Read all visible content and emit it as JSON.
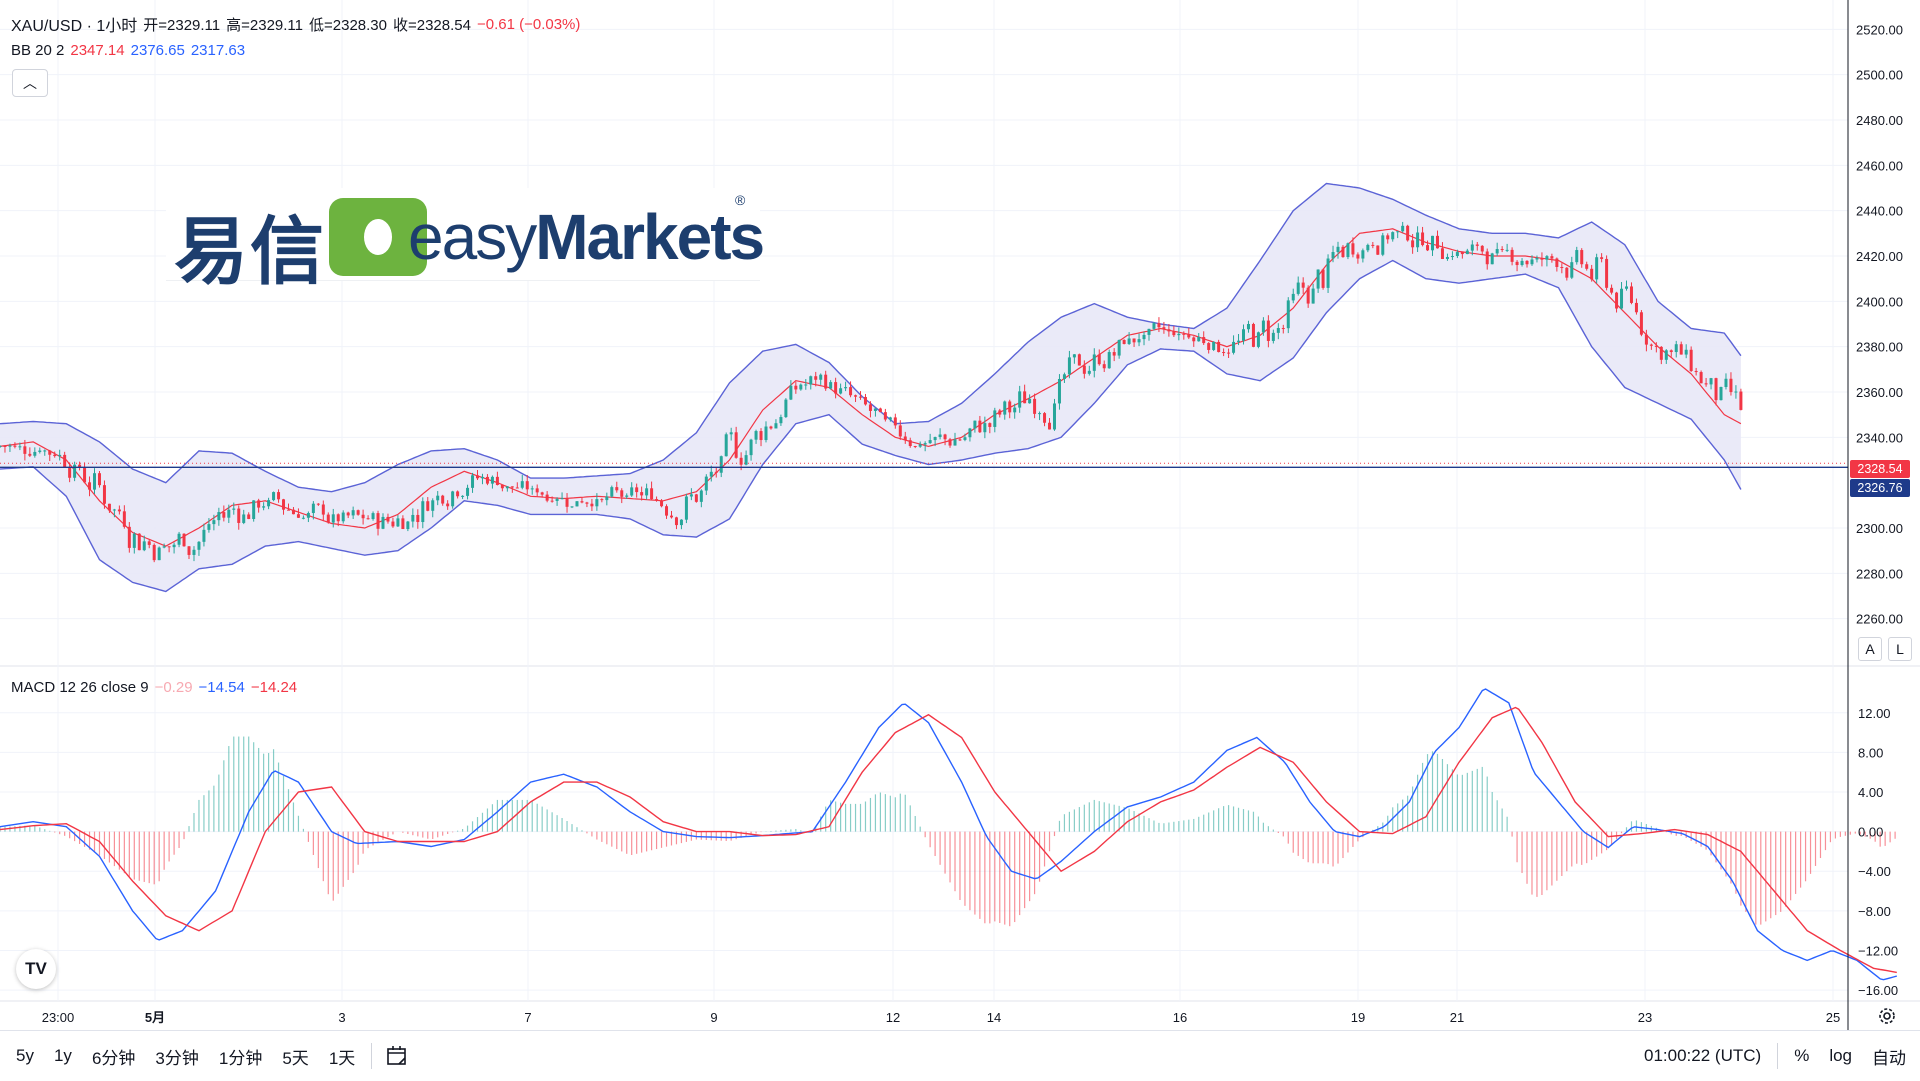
{
  "header": {
    "symbol": "XAU/USD · 1小时",
    "open": "开=2329.11",
    "high": "高=2329.11",
    "low": "低=2328.30",
    "close": "收=2328.54",
    "change": "−0.61 (−0.03%)"
  },
  "bb_legend": {
    "label": "BB 20 2",
    "basis": "2347.14",
    "upper": "2376.65",
    "lower": "2317.63"
  },
  "macd_legend": {
    "label": "MACD 12 26 close 9",
    "hist": "−0.29",
    "macd": "−14.54",
    "signal": "−14.24"
  },
  "logo": {
    "cn": "易信",
    "en_light": "easy",
    "en_bold": "Markets",
    "reg": "®"
  },
  "price_badges": {
    "last": "2328.54",
    "line": "2326.76"
  },
  "scale_buttons": {
    "auto": "A",
    "log": "L"
  },
  "tv_logo": "TV",
  "toolbar": {
    "ranges": [
      "5y",
      "1y",
      "6分钟",
      "3分钟",
      "1分钟",
      "5天",
      "1天"
    ],
    "calendar_icon": "calendar-icon",
    "time": "01:00:22 (UTC)",
    "percent": "%",
    "log": "log",
    "auto": "自动"
  },
  "colors": {
    "up": "#26a69a",
    "down": "#f23645",
    "bb_band": "#5b63d6",
    "bb_fill": "#e8e8f7",
    "bb_basis": "#f23645",
    "macd": "#2962ff",
    "signal": "#f23645",
    "hline": "#1e3a8a"
  },
  "chart_data": [
    {
      "type": "candlestick",
      "title": "XAU/USD · 1小时",
      "x_ticks": [
        "23:00",
        "5月",
        "3",
        "7",
        "9",
        "12",
        "14",
        "16",
        "19",
        "21",
        "23",
        "25"
      ],
      "y_ticks": [
        "2520.00",
        "2500.00",
        "2480.00",
        "2460.00",
        "2440.00",
        "2420.00",
        "2400.00",
        "2380.00",
        "2360.00",
        "2340.00",
        "2300.00",
        "2280.00",
        "2260.00"
      ],
      "ylim": [
        2255,
        2525
      ],
      "last_price": 2328.54,
      "horizontal_line": 2326.76,
      "bb_basis": [
        [
          0,
          2336
        ],
        [
          20,
          2338
        ],
        [
          40,
          2330
        ],
        [
          60,
          2312
        ],
        [
          80,
          2298
        ],
        [
          100,
          2292
        ],
        [
          120,
          2300
        ],
        [
          140,
          2310
        ],
        [
          160,
          2312
        ],
        [
          180,
          2307
        ],
        [
          200,
          2302
        ],
        [
          220,
          2300
        ],
        [
          240,
          2306
        ],
        [
          260,
          2318
        ],
        [
          280,
          2325
        ],
        [
          300,
          2320
        ],
        [
          320,
          2314
        ],
        [
          340,
          2313
        ],
        [
          360,
          2314
        ],
        [
          380,
          2313
        ],
        [
          400,
          2312
        ],
        [
          420,
          2316
        ],
        [
          440,
          2330
        ],
        [
          460,
          2352
        ],
        [
          480,
          2365
        ],
        [
          500,
          2362
        ],
        [
          520,
          2350
        ],
        [
          540,
          2340
        ],
        [
          560,
          2336
        ],
        [
          580,
          2340
        ],
        [
          600,
          2350
        ],
        [
          620,
          2357
        ],
        [
          640,
          2365
        ],
        [
          660,
          2375
        ],
        [
          680,
          2385
        ],
        [
          700,
          2388
        ],
        [
          720,
          2385
        ],
        [
          740,
          2380
        ],
        [
          760,
          2385
        ],
        [
          780,
          2397
        ],
        [
          800,
          2416
        ],
        [
          820,
          2430
        ],
        [
          840,
          2432
        ],
        [
          860,
          2426
        ],
        [
          880,
          2422
        ],
        [
          900,
          2420
        ],
        [
          920,
          2420
        ],
        [
          940,
          2418
        ],
        [
          960,
          2410
        ],
        [
          980,
          2395
        ],
        [
          1000,
          2380
        ],
        [
          1020,
          2368
        ],
        [
          1040,
          2350
        ],
        [
          1050,
          2346
        ]
      ],
      "bb_upper": [
        [
          0,
          2346
        ],
        [
          20,
          2347
        ],
        [
          40,
          2346
        ],
        [
          60,
          2338
        ],
        [
          80,
          2326
        ],
        [
          100,
          2320
        ],
        [
          120,
          2334
        ],
        [
          140,
          2333
        ],
        [
          160,
          2325
        ],
        [
          180,
          2318
        ],
        [
          200,
          2316
        ],
        [
          220,
          2320
        ],
        [
          240,
          2328
        ],
        [
          260,
          2334
        ],
        [
          280,
          2335
        ],
        [
          300,
          2330
        ],
        [
          320,
          2322
        ],
        [
          340,
          2322
        ],
        [
          360,
          2323
        ],
        [
          380,
          2324
        ],
        [
          400,
          2330
        ],
        [
          420,
          2342
        ],
        [
          440,
          2364
        ],
        [
          460,
          2378
        ],
        [
          480,
          2381
        ],
        [
          500,
          2373
        ],
        [
          520,
          2358
        ],
        [
          540,
          2346
        ],
        [
          560,
          2347
        ],
        [
          580,
          2355
        ],
        [
          600,
          2368
        ],
        [
          620,
          2382
        ],
        [
          640,
          2393
        ],
        [
          660,
          2399
        ],
        [
          680,
          2393
        ],
        [
          700,
          2390
        ],
        [
          720,
          2388
        ],
        [
          740,
          2397
        ],
        [
          760,
          2418
        ],
        [
          780,
          2440
        ],
        [
          800,
          2452
        ],
        [
          820,
          2450
        ],
        [
          840,
          2445
        ],
        [
          860,
          2438
        ],
        [
          880,
          2432
        ],
        [
          900,
          2430
        ],
        [
          920,
          2430
        ],
        [
          940,
          2428
        ],
        [
          960,
          2435
        ],
        [
          980,
          2425
        ],
        [
          1000,
          2400
        ],
        [
          1020,
          2388
        ],
        [
          1040,
          2386
        ],
        [
          1050,
          2376
        ]
      ],
      "bb_lower": [
        [
          0,
          2326
        ],
        [
          20,
          2327
        ],
        [
          40,
          2314
        ],
        [
          60,
          2286
        ],
        [
          80,
          2276
        ],
        [
          100,
          2272
        ],
        [
          120,
          2282
        ],
        [
          140,
          2284
        ],
        [
          160,
          2292
        ],
        [
          180,
          2294
        ],
        [
          200,
          2291
        ],
        [
          220,
          2288
        ],
        [
          240,
          2290
        ],
        [
          260,
          2300
        ],
        [
          280,
          2312
        ],
        [
          300,
          2310
        ],
        [
          320,
          2306
        ],
        [
          340,
          2306
        ],
        [
          360,
          2306
        ],
        [
          380,
          2304
        ],
        [
          400,
          2297
        ],
        [
          420,
          2296
        ],
        [
          440,
          2304
        ],
        [
          460,
          2328
        ],
        [
          480,
          2346
        ],
        [
          500,
          2350
        ],
        [
          520,
          2337
        ],
        [
          540,
          2332
        ],
        [
          560,
          2328
        ],
        [
          580,
          2330
        ],
        [
          600,
          2333
        ],
        [
          620,
          2335
        ],
        [
          640,
          2340
        ],
        [
          660,
          2355
        ],
        [
          680,
          2372
        ],
        [
          700,
          2379
        ],
        [
          720,
          2378
        ],
        [
          740,
          2368
        ],
        [
          760,
          2365
        ],
        [
          780,
          2375
        ],
        [
          800,
          2395
        ],
        [
          820,
          2410
        ],
        [
          840,
          2418
        ],
        [
          860,
          2410
        ],
        [
          880,
          2408
        ],
        [
          900,
          2410
        ],
        [
          920,
          2412
        ],
        [
          940,
          2406
        ],
        [
          960,
          2380
        ],
        [
          980,
          2362
        ],
        [
          1000,
          2355
        ],
        [
          1020,
          2348
        ],
        [
          1040,
          2330
        ],
        [
          1050,
          2317
        ]
      ]
    },
    {
      "type": "line",
      "title": "MACD 12 26 close 9",
      "y_ticks": [
        "12.00",
        "8.00",
        "4.00",
        "0.00",
        "−4.00",
        "−8.00",
        "−12.00",
        "−16.00"
      ],
      "ylim": [
        -17,
        14.5
      ],
      "series": [
        {
          "name": "MACD",
          "values": [
            [
              0,
              0.5
            ],
            [
              20,
              1.0
            ],
            [
              40,
              0.5
            ],
            [
              60,
              -2.5
            ],
            [
              80,
              -8
            ],
            [
              95,
              -11
            ],
            [
              110,
              -10
            ],
            [
              130,
              -6
            ],
            [
              150,
              2
            ],
            [
              165,
              6.2
            ],
            [
              180,
              5
            ],
            [
              200,
              0
            ],
            [
              215,
              -1.2
            ],
            [
              240,
              -1.0
            ],
            [
              260,
              -1.5
            ],
            [
              280,
              -0.8
            ],
            [
              300,
              2
            ],
            [
              320,
              5
            ],
            [
              340,
              5.8
            ],
            [
              360,
              4.5
            ],
            [
              380,
              2
            ],
            [
              400,
              0.0
            ],
            [
              420,
              -0.5
            ],
            [
              440,
              -0.6
            ],
            [
              460,
              -0.4
            ],
            [
              475,
              -0.2
            ],
            [
              490,
              0
            ],
            [
              510,
              5
            ],
            [
              530,
              10.5
            ],
            [
              545,
              13
            ],
            [
              560,
              11
            ],
            [
              580,
              5
            ],
            [
              595,
              -0.5
            ],
            [
              610,
              -4
            ],
            [
              625,
              -4.8
            ],
            [
              640,
              -3
            ],
            [
              660,
              0
            ],
            [
              680,
              2.5
            ],
            [
              700,
              3.5
            ],
            [
              720,
              5
            ],
            [
              740,
              8.2
            ],
            [
              758,
              9.5
            ],
            [
              775,
              7
            ],
            [
              790,
              3
            ],
            [
              805,
              0
            ],
            [
              820,
              -0.5
            ],
            [
              835,
              0.5
            ],
            [
              850,
              3
            ],
            [
              865,
              8
            ],
            [
              880,
              10.5
            ],
            [
              895,
              14.5
            ],
            [
              910,
              13
            ],
            [
              925,
              6
            ],
            [
              940,
              3
            ],
            [
              955,
              0
            ],
            [
              970,
              -1.6
            ],
            [
              985,
              0.5
            ],
            [
              1000,
              0.2
            ],
            [
              1015,
              -0.2
            ],
            [
              1030,
              -1.5
            ],
            [
              1045,
              -5
            ],
            [
              1060,
              -10
            ],
            [
              1075,
              -12
            ],
            [
              1090,
              -13
            ],
            [
              1105,
              -12
            ],
            [
              1120,
              -13
            ],
            [
              1135,
              -15
            ],
            [
              1145,
              -14.54
            ]
          ]
        },
        {
          "name": "Signal",
          "values": [
            [
              0,
              0.2
            ],
            [
              20,
              0.6
            ],
            [
              40,
              0.8
            ],
            [
              60,
              -1
            ],
            [
              80,
              -5
            ],
            [
              100,
              -8.5
            ],
            [
              120,
              -10
            ],
            [
              140,
              -8
            ],
            [
              160,
              0
            ],
            [
              180,
              4
            ],
            [
              200,
              4.5
            ],
            [
              220,
              0
            ],
            [
              240,
              -1
            ],
            [
              260,
              -1
            ],
            [
              280,
              -1
            ],
            [
              300,
              0
            ],
            [
              320,
              3
            ],
            [
              340,
              5
            ],
            [
              360,
              5
            ],
            [
              380,
              3.5
            ],
            [
              400,
              1
            ],
            [
              420,
              0
            ],
            [
              440,
              0
            ],
            [
              460,
              -0.4
            ],
            [
              480,
              -0.3
            ],
            [
              500,
              0.5
            ],
            [
              520,
              6
            ],
            [
              540,
              10
            ],
            [
              560,
              11.8
            ],
            [
              580,
              9.5
            ],
            [
              600,
              4
            ],
            [
              620,
              0
            ],
            [
              640,
              -4
            ],
            [
              660,
              -2
            ],
            [
              680,
              1
            ],
            [
              700,
              3
            ],
            [
              720,
              4.2
            ],
            [
              740,
              6.5
            ],
            [
              760,
              8.5
            ],
            [
              780,
              7
            ],
            [
              800,
              3
            ],
            [
              820,
              0
            ],
            [
              840,
              -0.2
            ],
            [
              860,
              1.5
            ],
            [
              880,
              7
            ],
            [
              900,
              11.5
            ],
            [
              915,
              12.6
            ],
            [
              930,
              9
            ],
            [
              950,
              3
            ],
            [
              970,
              -0.5
            ],
            [
              990,
              -0.2
            ],
            [
              1010,
              0.2
            ],
            [
              1030,
              -0.3
            ],
            [
              1050,
              -2
            ],
            [
              1070,
              -6
            ],
            [
              1090,
              -10
            ],
            [
              1110,
              -12
            ],
            [
              1130,
              -13.8
            ],
            [
              1145,
              -14.24
            ]
          ]
        },
        {
          "name": "Histogram",
          "values": []
        }
      ]
    }
  ]
}
